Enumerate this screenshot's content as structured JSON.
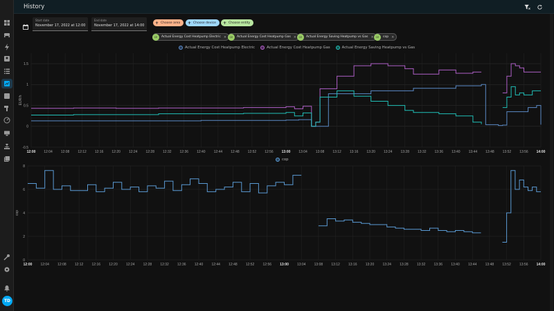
{
  "header": {
    "title": "History"
  },
  "dates": {
    "start": {
      "label": "Start date",
      "value": "November 17, 2022 at 12:00"
    },
    "end": {
      "label": "End date",
      "value": "November 17, 2022 at 14:00"
    }
  },
  "targets": {
    "area_label": "Choose area",
    "device_label": "Choose device",
    "entity_label": "Choose entity",
    "area_color": "#ffb38a",
    "device_color": "#9fd8fa",
    "entity_color": "#b8e6a0"
  },
  "entities": [
    {
      "name": "Actual Energy Cost Heatpump Electric",
      "icon": "CE"
    },
    {
      "name": "Actual Energy Cost Heatpump Gas",
      "icon": "CE"
    },
    {
      "name": "Actual Energy Saving Heatpump vs Gas",
      "icon": "CE"
    },
    {
      "name": "cop",
      "icon": "CE"
    }
  ],
  "user": {
    "initials": "TD"
  },
  "chart_data": [
    {
      "type": "line",
      "ylabel": "EUR/h",
      "ylim": [
        -0.5,
        1.75
      ],
      "yticks": [
        "1.5",
        "1",
        "0.5",
        "0",
        "-0.5"
      ],
      "xticks": [
        "12:00",
        "12:04",
        "12:08",
        "12:12",
        "12:16",
        "12:20",
        "12:24",
        "12:28",
        "12:32",
        "12:36",
        "12:40",
        "12:44",
        "12:48",
        "12:52",
        "12:56",
        "13:00",
        "13:04",
        "13:08",
        "13:12",
        "13:16",
        "13:20",
        "13:24",
        "13:28",
        "13:32",
        "13:36",
        "13:40",
        "13:44",
        "13:48",
        "13:52",
        "13:56",
        "14:00"
      ],
      "grid": true,
      "legend_position": "top",
      "series": [
        {
          "name": "Actual Energy Cost Heatpump Electric",
          "color": "#5b8ac6",
          "x": [
            0,
            20,
            40,
            60,
            63,
            66,
            70,
            80,
            90,
            100,
            106,
            107,
            110,
            111,
            112,
            117,
            119,
            120
          ],
          "y": [
            0.13,
            0.13,
            0.14,
            0.15,
            0.16,
            0.0,
            0.78,
            0.85,
            0.91,
            0.97,
            1.0,
            0.04,
            0.02,
            0.03,
            0.35,
            0.45,
            0.5,
            0.04
          ]
        },
        {
          "name": "Actual Energy Cost Heatpump Gas",
          "color": "#b060c8",
          "x": [
            0,
            10,
            20,
            30,
            40,
            50,
            60,
            62,
            64,
            66,
            67,
            68,
            72,
            76,
            80,
            84,
            88,
            90,
            96,
            100,
            104,
            106,
            106.5,
            108,
            109,
            110,
            111,
            112,
            113,
            114,
            115,
            116,
            118,
            120
          ],
          "y": [
            0.43,
            0.44,
            0.43,
            0.44,
            0.44,
            0.45,
            0.47,
            0.42,
            0.48,
            0.0,
            0.1,
            0.9,
            1.2,
            1.45,
            1.5,
            1.45,
            1.38,
            1.25,
            1.35,
            1.27,
            1.3,
            1.3,
            null,
            null,
            null,
            null,
            0.8,
            1.2,
            1.5,
            1.45,
            1.4,
            1.3,
            1.3,
            1.3
          ]
        },
        {
          "name": "Actual Energy Saving Heatpump vs Gas",
          "color": "#21c0b8",
          "x": [
            0,
            10,
            20,
            30,
            40,
            50,
            60,
            62,
            64,
            66,
            67,
            68,
            72,
            76,
            80,
            84,
            88,
            90,
            96,
            100,
            104,
            106,
            106.5,
            108,
            109,
            110,
            111,
            112,
            113,
            114,
            115,
            116,
            118,
            120
          ],
          "y": [
            0.27,
            0.28,
            0.28,
            0.3,
            0.3,
            0.31,
            0.33,
            0.25,
            0.32,
            0.0,
            0.1,
            0.7,
            0.85,
            0.72,
            0.6,
            0.5,
            0.38,
            0.33,
            0.3,
            0.25,
            0.1,
            0.05,
            null,
            null,
            null,
            null,
            0.45,
            0.7,
            0.95,
            0.75,
            0.8,
            0.75,
            0.85,
            0.85
          ]
        }
      ]
    },
    {
      "type": "line",
      "ylabel": "cop",
      "ylim": [
        0,
        8
      ],
      "yticks": [
        "8",
        "6",
        "4",
        "2",
        "0"
      ],
      "xticks": [
        "12:00",
        "12:04",
        "12:08",
        "12:12",
        "12:16",
        "12:20",
        "12:24",
        "12:28",
        "12:32",
        "12:36",
        "12:40",
        "12:44",
        "12:48",
        "12:52",
        "12:56",
        "13:00",
        "13:04",
        "13:08",
        "13:12",
        "13:16",
        "13:20",
        "13:24",
        "13:28",
        "13:32",
        "13:36",
        "13:40",
        "13:44",
        "13:48",
        "13:52",
        "13:56",
        "14:00"
      ],
      "grid": true,
      "legend_position": "top",
      "series": [
        {
          "name": "cop",
          "color": "#5b9bd5",
          "x": [
            0,
            2,
            4,
            6,
            8,
            10,
            12,
            14,
            16,
            18,
            20,
            22,
            24,
            26,
            28,
            30,
            32,
            34,
            36,
            38,
            40,
            42,
            44,
            46,
            48,
            50,
            52,
            54,
            56,
            58,
            60,
            62,
            64,
            65,
            65.5,
            66,
            68,
            70,
            72,
            74,
            76,
            78,
            80,
            82,
            84,
            86,
            88,
            90,
            92,
            94,
            96,
            98,
            100,
            102,
            104,
            106,
            106.5,
            108,
            109,
            110,
            111,
            112,
            113,
            114,
            115,
            116,
            117,
            118,
            119,
            120
          ],
          "y": [
            6.5,
            6.1,
            7.6,
            6.0,
            6.3,
            5.9,
            5.9,
            6.4,
            5.8,
            6.1,
            6.6,
            6.0,
            6.2,
            5.8,
            6.3,
            6.1,
            6.7,
            5.9,
            6.4,
            6.9,
            6.5,
            5.8,
            6.0,
            6.2,
            6.6,
            5.8,
            6.5,
            5.7,
            6.3,
            6.6,
            6.4,
            7.2,
            7.2,
            null,
            null,
            null,
            2.9,
            3.5,
            3.3,
            3.4,
            3.2,
            3.1,
            3.0,
            3.0,
            2.8,
            2.7,
            2.6,
            2.6,
            2.5,
            2.7,
            2.5,
            2.4,
            2.5,
            2.4,
            2.3,
            2.3,
            null,
            null,
            null,
            null,
            1.5,
            4.0,
            7.6,
            6.0,
            6.8,
            6.2,
            5.9,
            6.2,
            5.8,
            5.8
          ]
        }
      ]
    }
  ]
}
